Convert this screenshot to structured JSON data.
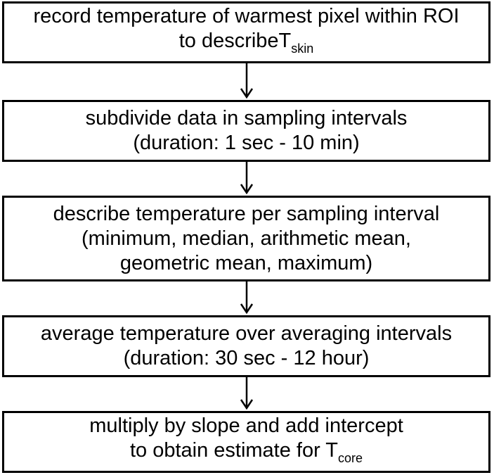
{
  "flowchart": {
    "steps": [
      {
        "line1": "record temperature of warmest pixel within ROI",
        "line2_main": "to describeT",
        "line2_sub": "skin"
      },
      {
        "line1": "subdivide data in sampling intervals",
        "line2": "(duration: 1 sec - 10 min)"
      },
      {
        "line1": "describe temperature per sampling interval",
        "line2": "(minimum, median, arithmetic mean,",
        "line3": "geometric mean, maximum)"
      },
      {
        "line1": "average temperature over averaging intervals",
        "line2": "(duration: 30 sec - 12 hour)"
      },
      {
        "line1": "multiply by slope and add intercept",
        "line2_main": "to obtain estimate for T",
        "line2_sub": "core"
      }
    ],
    "colors": {
      "stroke": "#000000",
      "fill": "#ffffff",
      "text": "#000000"
    }
  }
}
